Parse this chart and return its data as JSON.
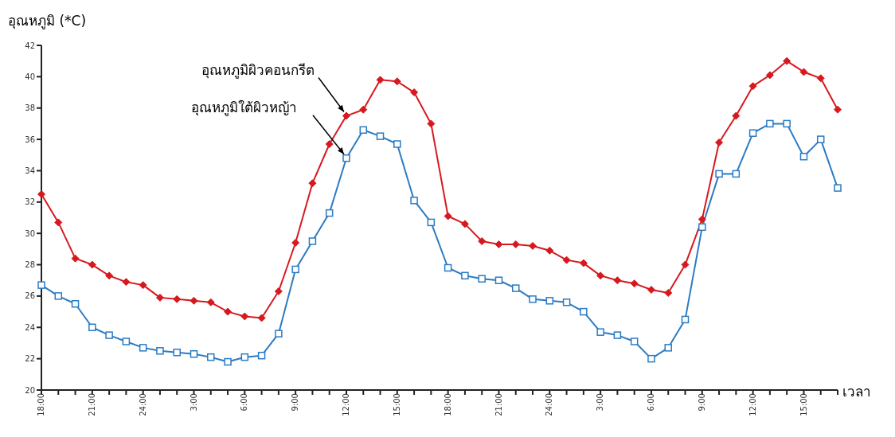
{
  "chart_data": {
    "type": "line",
    "ylabel": "อุณหภูมิ (*C)",
    "xlabel": "เวลา",
    "categories": [
      "18:00",
      null,
      null,
      "21:00",
      null,
      null,
      "24:00",
      null,
      null,
      "3:00",
      null,
      null,
      "6:00",
      null,
      null,
      "9:00",
      null,
      null,
      "12:00",
      null,
      null,
      "15:00",
      null,
      null,
      "18:00",
      null,
      null,
      "21:00",
      null,
      null,
      "24:00",
      null,
      null,
      "3:00",
      null,
      null,
      "6:00",
      null,
      null,
      "9:00",
      null,
      null,
      "12:00",
      null,
      null,
      "15:00",
      null,
      null
    ],
    "series": [
      {
        "name": "อุณหภูมิผิวคอนกรีต",
        "color": "#d7191f",
        "marker": "diamond",
        "values": [
          32.5,
          30.7,
          28.4,
          28.0,
          27.3,
          26.9,
          26.7,
          25.9,
          25.8,
          25.7,
          25.6,
          25.0,
          24.7,
          24.6,
          26.3,
          29.4,
          33.2,
          35.7,
          37.5,
          37.9,
          39.8,
          39.7,
          39.0,
          37.0,
          31.1,
          30.6,
          29.5,
          29.3,
          29.3,
          29.2,
          28.9,
          28.3,
          28.1,
          27.3,
          27.0,
          26.8,
          26.4,
          26.2,
          28.0,
          30.9,
          35.8,
          37.5,
          39.4,
          40.1,
          41.0,
          40.3,
          39.9,
          37.9
        ]
      },
      {
        "name": "อุณหภูมิใต้ผิวหญ้า",
        "color": "#2b7bc4",
        "marker": "square",
        "values": [
          26.7,
          26.0,
          25.5,
          24.0,
          23.5,
          23.1,
          22.7,
          22.5,
          22.4,
          22.3,
          22.1,
          21.8,
          22.1,
          22.2,
          23.6,
          27.7,
          29.5,
          31.3,
          34.8,
          36.6,
          36.2,
          35.7,
          32.1,
          30.7,
          27.8,
          27.3,
          27.1,
          27.0,
          26.5,
          25.8,
          25.7,
          25.6,
          25.0,
          23.7,
          23.5,
          23.1,
          22.0,
          22.7,
          24.5,
          30.4,
          33.8,
          33.8,
          36.4,
          37.0,
          37.0,
          34.9,
          36.0,
          32.9
        ]
      }
    ],
    "ylim": [
      20,
      42
    ],
    "yticks": [
      20,
      22,
      24,
      26,
      28,
      30,
      32,
      34,
      36,
      38,
      40,
      42
    ],
    "grid": false,
    "line_style": "solid"
  }
}
